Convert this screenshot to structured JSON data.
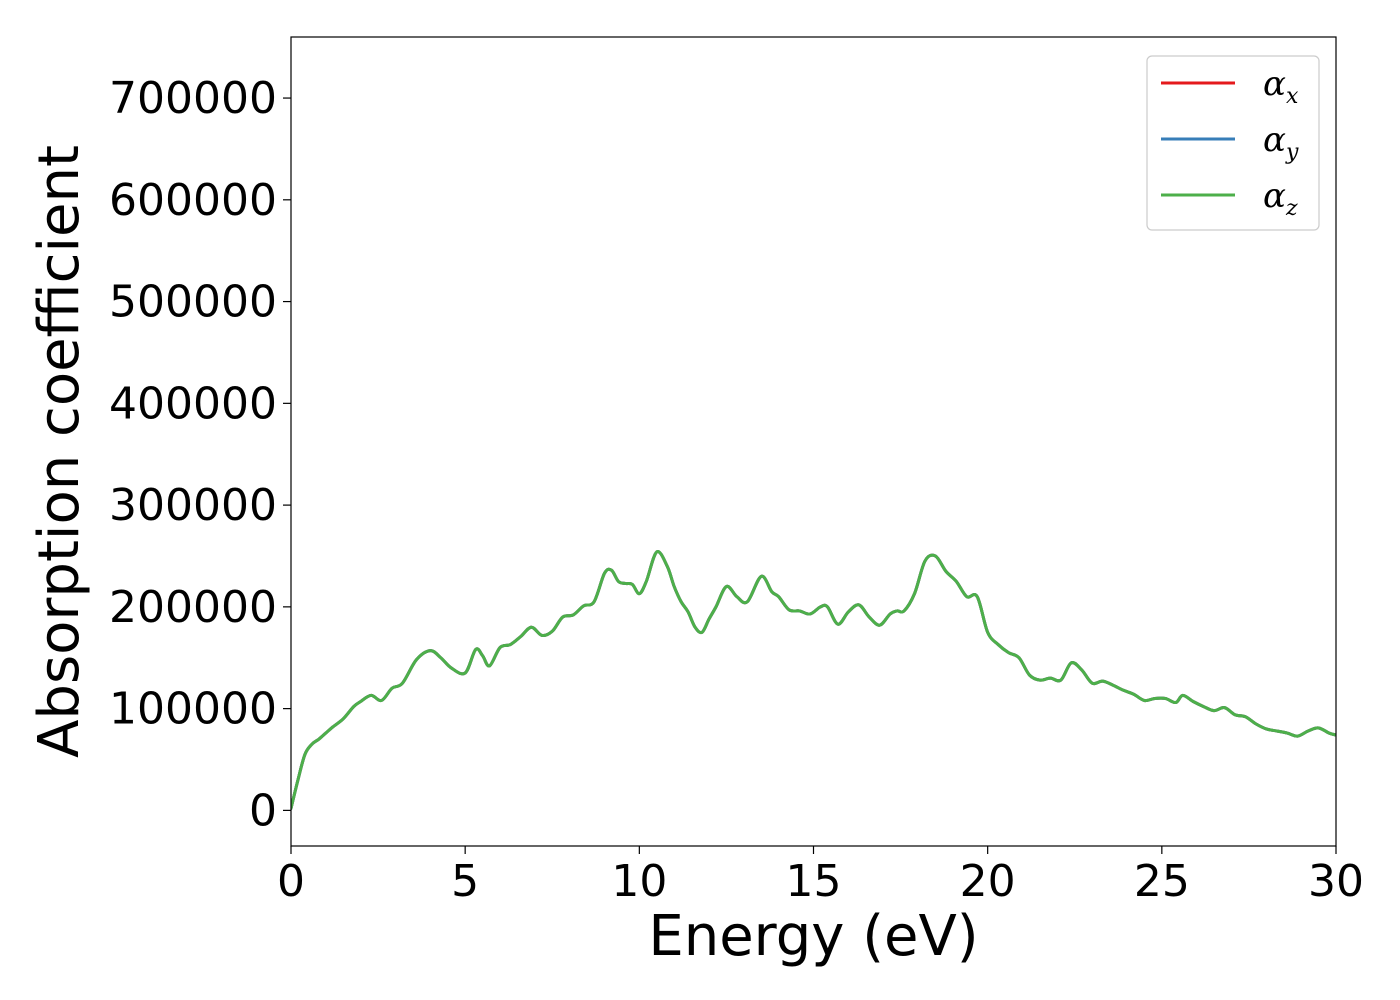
{
  "chart_data": {
    "type": "line",
    "xlabel": "Energy (eV)",
    "ylabel": "Absorption coefficient",
    "xlim": [
      0,
      30
    ],
    "ylim": [
      -35000,
      760000
    ],
    "xticks": [
      0,
      5,
      10,
      15,
      20,
      25,
      30
    ],
    "yticks": [
      0,
      100000,
      200000,
      300000,
      400000,
      500000,
      600000,
      700000
    ],
    "grid": false,
    "legend_position": "top-right",
    "x": [
      0,
      0.2,
      0.4,
      0.6,
      0.8,
      1.0,
      1.2,
      1.5,
      1.8,
      2.0,
      2.3,
      2.6,
      2.9,
      3.2,
      3.6,
      4.0,
      4.3,
      4.6,
      5.0,
      5.3,
      5.5,
      5.7,
      6.0,
      6.3,
      6.6,
      6.9,
      7.2,
      7.5,
      7.8,
      8.1,
      8.4,
      8.7,
      9.0,
      9.2,
      9.4,
      9.6,
      9.8,
      10.0,
      10.2,
      10.5,
      10.8,
      11.0,
      11.2,
      11.4,
      11.6,
      11.8,
      12.0,
      12.2,
      12.5,
      12.8,
      13.1,
      13.5,
      13.8,
      14.0,
      14.3,
      14.6,
      14.9,
      15.2,
      15.4,
      15.7,
      16.0,
      16.3,
      16.6,
      16.9,
      17.2,
      17.4,
      17.6,
      17.9,
      18.2,
      18.5,
      18.8,
      19.1,
      19.4,
      19.7,
      20.0,
      20.3,
      20.6,
      20.9,
      21.2,
      21.5,
      21.8,
      22.1,
      22.4,
      22.7,
      23.0,
      23.3,
      23.6,
      23.9,
      24.2,
      24.5,
      24.8,
      25.1,
      25.4,
      25.6,
      25.9,
      26.2,
      26.5,
      26.8,
      27.1,
      27.4,
      27.7,
      28.0,
      28.3,
      28.6,
      28.9,
      29.2,
      29.5,
      29.8,
      30.0
    ],
    "series": [
      {
        "name": "α_x",
        "color": "#e41a1c",
        "values": [
          2000,
          30000,
          55000,
          65000,
          70000,
          76000,
          82000,
          90000,
          102000,
          107000,
          113000,
          108000,
          120000,
          125000,
          148000,
          157000,
          150000,
          140000,
          135000,
          158000,
          152000,
          142000,
          160000,
          163000,
          171000,
          180000,
          172000,
          176000,
          190000,
          192000,
          201000,
          205000,
          233000,
          236000,
          225000,
          223000,
          222000,
          213000,
          225000,
          254000,
          240000,
          220000,
          205000,
          195000,
          180000,
          175000,
          188000,
          200000,
          220000,
          210000,
          205000,
          230000,
          215000,
          210000,
          197000,
          196000,
          193000,
          200000,
          200000,
          183000,
          195000,
          202000,
          190000,
          182000,
          193000,
          196000,
          196000,
          213000,
          245000,
          250000,
          235000,
          225000,
          210000,
          210000,
          175000,
          163000,
          155000,
          150000,
          133000,
          128000,
          130000,
          128000,
          145000,
          138000,
          125000,
          127000,
          123000,
          118000,
          114000,
          108000,
          110000,
          110000,
          106000,
          113000,
          107000,
          102000,
          98000,
          101000,
          94000,
          92000,
          85000,
          80000,
          78000,
          76000,
          73000,
          78000,
          81000,
          76000,
          74000
        ]
      },
      {
        "name": "α_y",
        "color": "#377eb8",
        "values": [
          2000,
          30000,
          55000,
          65000,
          70000,
          76000,
          82000,
          90000,
          102000,
          107000,
          113000,
          108000,
          120000,
          125000,
          148000,
          157000,
          150000,
          140000,
          135000,
          158000,
          152000,
          142000,
          160000,
          163000,
          171000,
          180000,
          172000,
          176000,
          190000,
          192000,
          201000,
          205000,
          233000,
          236000,
          225000,
          223000,
          222000,
          213000,
          225000,
          254000,
          240000,
          220000,
          205000,
          195000,
          180000,
          175000,
          188000,
          200000,
          220000,
          210000,
          205000,
          230000,
          215000,
          210000,
          197000,
          196000,
          193000,
          200000,
          200000,
          183000,
          195000,
          202000,
          190000,
          182000,
          193000,
          196000,
          196000,
          213000,
          245000,
          250000,
          235000,
          225000,
          210000,
          210000,
          175000,
          163000,
          155000,
          150000,
          133000,
          128000,
          130000,
          128000,
          145000,
          138000,
          125000,
          127000,
          123000,
          118000,
          114000,
          108000,
          110000,
          110000,
          106000,
          113000,
          107000,
          102000,
          98000,
          101000,
          94000,
          92000,
          85000,
          80000,
          78000,
          76000,
          73000,
          78000,
          81000,
          76000,
          74000
        ]
      },
      {
        "name": "α_z",
        "color": "#4daf4a",
        "values": [
          2000,
          30000,
          55000,
          65000,
          70000,
          76000,
          82000,
          90000,
          102000,
          107000,
          113000,
          108000,
          120000,
          125000,
          148000,
          157000,
          150000,
          140000,
          135000,
          158000,
          152000,
          142000,
          160000,
          163000,
          171000,
          180000,
          172000,
          176000,
          190000,
          192000,
          201000,
          205000,
          233000,
          236000,
          225000,
          223000,
          222000,
          213000,
          225000,
          254000,
          240000,
          220000,
          205000,
          195000,
          180000,
          175000,
          188000,
          200000,
          220000,
          210000,
          205000,
          230000,
          215000,
          210000,
          197000,
          196000,
          193000,
          200000,
          200000,
          183000,
          195000,
          202000,
          190000,
          182000,
          193000,
          196000,
          196000,
          213000,
          245000,
          250000,
          235000,
          225000,
          210000,
          210000,
          175000,
          163000,
          155000,
          150000,
          133000,
          128000,
          130000,
          128000,
          145000,
          138000,
          125000,
          127000,
          123000,
          118000,
          114000,
          108000,
          110000,
          110000,
          106000,
          113000,
          107000,
          102000,
          98000,
          101000,
          94000,
          92000,
          85000,
          80000,
          78000,
          76000,
          73000,
          78000,
          81000,
          76000,
          74000
        ]
      }
    ]
  }
}
